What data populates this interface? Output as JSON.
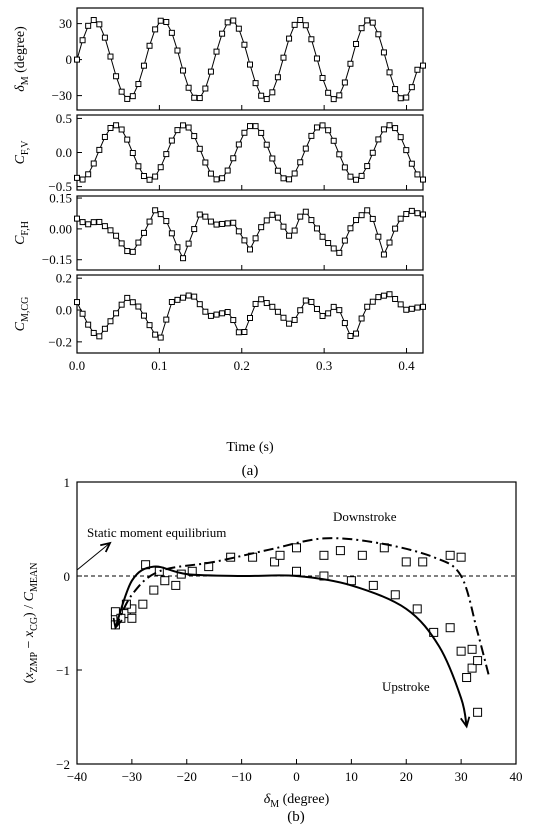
{
  "figure_a": {
    "xlabel": "Time (s)",
    "caption": "(a)",
    "x_ticks": [
      "0.0",
      "0.1",
      "0.2",
      "0.3",
      "0.4"
    ],
    "panels": [
      {
        "ylabel_main": "δ",
        "ylabel_sub": "M",
        "ylabel_suffix": " (degree)",
        "ylim": [
          -42,
          43
        ],
        "y_ticks": [
          "30",
          "0",
          "−30"
        ],
        "y_tick_values": [
          30,
          0,
          -30
        ]
      },
      {
        "ylabel_main": "C",
        "ylabel_sub": "F,V",
        "ylabel_suffix": "",
        "ylim": [
          -0.55,
          0.55
        ],
        "y_ticks": [
          "0.5",
          "0.0",
          "−0.5"
        ],
        "y_tick_values": [
          0.5,
          0.0,
          -0.5
        ]
      },
      {
        "ylabel_main": "C",
        "ylabel_sub": "F,H",
        "ylabel_suffix": "",
        "ylim": [
          -0.2,
          0.16
        ],
        "y_ticks": [
          "0.15",
          "0.00",
          "−0.15"
        ],
        "y_tick_values": [
          0.15,
          0.0,
          -0.15
        ]
      },
      {
        "ylabel_main": "C",
        "ylabel_sub": "M,CG",
        "ylabel_suffix": "",
        "ylim": [
          -0.27,
          0.22
        ],
        "y_ticks": [
          "0.2",
          "0.0",
          "−0.2"
        ],
        "y_tick_values": [
          0.2,
          0.0,
          -0.2
        ]
      }
    ]
  },
  "figure_b": {
    "caption": "(b)",
    "xlabel_main": "δ",
    "xlabel_sub": "M",
    "xlabel_suffix": " (degree)",
    "ylabel": "(x_ZMP − x_CG) / C_MEAN",
    "x_ticks": [
      "−40",
      "−30",
      "−20",
      "−10",
      "0",
      "10",
      "20",
      "30",
      "40"
    ],
    "y_ticks": [
      "1",
      "0",
      "−1",
      "−2"
    ],
    "annotations": {
      "static": "Static moment equilibrium",
      "downstroke": "Downstroke",
      "upstroke": "Upstroke"
    }
  },
  "chart_data": [
    {
      "type": "line",
      "title": "",
      "xlabel": "Time (s)",
      "xlim": [
        0.0,
        0.42
      ],
      "flap_frequency_hz": 12,
      "series": [
        {
          "quantity": "δM (degree)",
          "ylim": [
            -42,
            43
          ],
          "shape": "sinusoid",
          "amplitude": 33,
          "mean": 0,
          "x": [
            0.0,
            0.0205,
            0.0622,
            0.1038,
            0.1455,
            0.1872,
            0.2288,
            0.2705,
            0.3122,
            0.3538,
            0.3955,
            0.417
          ],
          "y": [
            0,
            33,
            -33,
            33,
            -33,
            33,
            -33,
            33,
            -33,
            33,
            -33,
            -5
          ],
          "markers": "open-square"
        },
        {
          "quantity": "CF,V",
          "ylim": [
            -0.55,
            0.55
          ],
          "shape": "sinusoid",
          "amplitude": 0.4,
          "x": [
            0.0,
            0.005,
            0.047,
            0.089,
            0.131,
            0.172,
            0.214,
            0.256,
            0.297,
            0.339,
            0.381,
            0.417
          ],
          "y": [
            -0.38,
            -0.4,
            0.4,
            -0.4,
            0.4,
            -0.4,
            0.4,
            -0.4,
            0.4,
            -0.4,
            0.4,
            -0.38
          ],
          "markers": "open-square"
        },
        {
          "quantity": "CF,H",
          "ylim": [
            -0.2,
            0.16
          ],
          "shape": "periodic",
          "x": [
            0.0,
            0.012,
            0.025,
            0.045,
            0.065,
            0.08,
            0.096,
            0.11,
            0.128,
            0.15,
            0.167,
            0.19,
            0.21,
            0.225,
            0.24,
            0.26,
            0.275,
            0.3,
            0.318,
            0.335,
            0.355,
            0.373,
            0.39,
            0.405,
            0.417
          ],
          "y": [
            0.05,
            0.02,
            0.04,
            -0.02,
            -0.13,
            -0.03,
            0.1,
            0.03,
            -0.15,
            0.08,
            0.02,
            0.03,
            -0.1,
            0.02,
            0.08,
            -0.05,
            0.1,
            -0.05,
            -0.12,
            0.03,
            0.1,
            -0.13,
            0.04,
            0.09,
            0.07
          ],
          "markers": "open-square"
        },
        {
          "quantity": "CM,CG",
          "ylim": [
            -0.27,
            0.22
          ],
          "shape": "periodic",
          "x": [
            0.0,
            0.012,
            0.025,
            0.045,
            0.06,
            0.075,
            0.1,
            0.115,
            0.14,
            0.16,
            0.185,
            0.2,
            0.22,
            0.24,
            0.26,
            0.28,
            0.3,
            0.315,
            0.335,
            0.35,
            0.365,
            0.38,
            0.4,
            0.417
          ],
          "y": [
            0.05,
            -0.08,
            -0.18,
            -0.04,
            0.08,
            0.02,
            -0.2,
            0.05,
            0.1,
            -0.04,
            -0.01,
            -0.18,
            0.08,
            0.01,
            -0.1,
            0.08,
            -0.05,
            0.04,
            -0.2,
            0.01,
            0.08,
            0.1,
            0.0,
            0.02
          ],
          "markers": "open-square"
        }
      ]
    },
    {
      "type": "scatter",
      "title": "",
      "xlabel": "δM (degree)",
      "ylabel": "(xZMP − xCG) / CMEAN",
      "xlim": [
        -40,
        40
      ],
      "ylim": [
        -2,
        1
      ],
      "reference_line_y": 0,
      "scatter_markers": "open-square",
      "points": [
        [
          -33,
          -0.45
        ],
        [
          -32,
          -0.4
        ],
        [
          -31,
          -0.4
        ],
        [
          -30,
          -0.35
        ],
        [
          -28,
          -0.3
        ],
        [
          -26,
          -0.15
        ],
        [
          -24,
          -0.05
        ],
        [
          -22,
          -0.1
        ],
        [
          -19,
          0.05
        ],
        [
          -16,
          0.1
        ],
        [
          -27.5,
          0.12
        ],
        [
          -25,
          0.05
        ],
        [
          -21,
          0.02
        ],
        [
          -12,
          0.2
        ],
        [
          -8,
          0.2
        ],
        [
          -4,
          0.15
        ],
        [
          0,
          0.05
        ],
        [
          5,
          0.0
        ],
        [
          10,
          -0.05
        ],
        [
          14,
          -0.1
        ],
        [
          18,
          -0.2
        ],
        [
          22,
          -0.35
        ],
        [
          25,
          -0.6
        ],
        [
          28,
          -0.55
        ],
        [
          30,
          -0.8
        ],
        [
          31,
          -1.08
        ],
        [
          32,
          -0.98
        ],
        [
          33,
          -1.45
        ],
        [
          -3,
          0.22
        ],
        [
          0,
          0.3
        ],
        [
          5,
          0.22
        ],
        [
          8,
          0.27
        ],
        [
          12,
          0.22
        ],
        [
          16,
          0.3
        ],
        [
          20,
          0.15
        ],
        [
          23,
          0.15
        ],
        [
          28,
          0.22
        ],
        [
          30,
          0.2
        ],
        [
          32,
          -0.78
        ],
        [
          33,
          -0.9
        ],
        [
          -33,
          -0.38
        ],
        [
          -32,
          -0.45
        ],
        [
          -30,
          -0.45
        ],
        [
          -33,
          -0.52
        ],
        [
          -31,
          -0.3
        ]
      ],
      "curves": [
        {
          "label": "Downstroke",
          "style": "dash-dot",
          "x": [
            -33,
            -30,
            -25,
            -15,
            -5,
            5,
            15,
            25,
            30,
            33,
            35
          ],
          "y": [
            -0.55,
            -0.2,
            0.05,
            0.15,
            0.28,
            0.4,
            0.35,
            0.2,
            0.0,
            -0.6,
            -1.05
          ]
        },
        {
          "label": "Upstroke",
          "style": "solid",
          "x": [
            -33,
            -30,
            -26,
            -20,
            -10,
            0,
            10,
            20,
            26,
            30,
            31
          ],
          "y": [
            -0.55,
            -0.05,
            0.1,
            0.02,
            0.0,
            0.0,
            -0.1,
            -0.35,
            -0.75,
            -1.3,
            -1.6
          ]
        }
      ]
    }
  ]
}
